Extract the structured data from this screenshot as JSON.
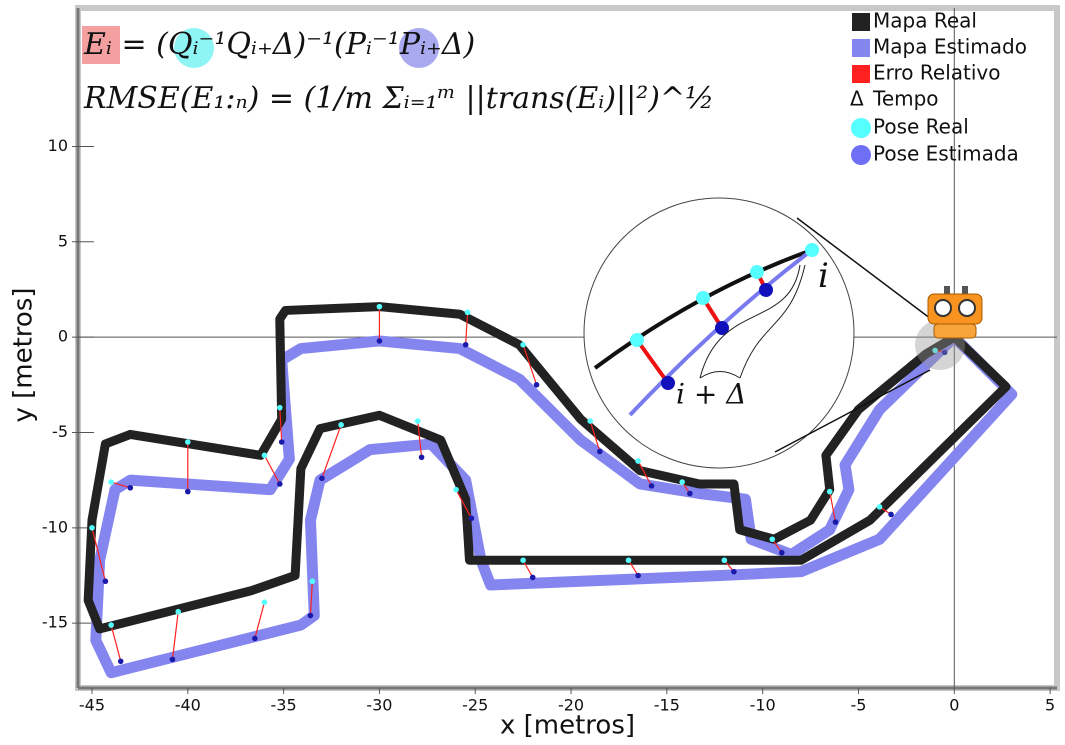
{
  "chart_data": {
    "type": "line",
    "x_label": "x [metros]",
    "y_label": "y [metros]",
    "xlim": [
      -45.73,
      5.36
    ],
    "ylim": [
      -18.4,
      17.26
    ],
    "xticks": [
      -45,
      -40,
      -35,
      -30,
      -25,
      -20,
      -15,
      -10,
      -5,
      0,
      5
    ],
    "yticks": [
      -15,
      -10,
      -5,
      0,
      5,
      10
    ],
    "axis_lines_at_zero": true,
    "annotations": {
      "formula_error": "Eᵢ = (Qᵢ⁻¹Qᵢ₊Δ)⁻¹(Pᵢ⁻¹Pᵢ₊Δ)",
      "formula_rmse": "RMSE(E₁:ₙ) = (1/m Σᵢ₌₁ᵐ ||trans(Eᵢ)||²)^½",
      "inset_i": "i",
      "inset_i_delta": "i + Δ"
    },
    "series": [
      {
        "name": "Mapa Real",
        "color": "#222222",
        "x": [
          0,
          2.7,
          -4.4,
          -8,
          -11.7,
          -25.3,
          -25.5,
          -26.8,
          -30,
          -33.1,
          -34.1,
          -34.4,
          -36.7,
          -44.6,
          -45.2,
          -45,
          -44.3,
          -43,
          -36.2,
          -35.1,
          -35.2,
          -34.9,
          -30,
          -25.8,
          -22.7,
          -19.5,
          -16.4,
          -13.3,
          -11.5,
          -11.2,
          -9.4,
          -7.5,
          -6.5,
          -6.7,
          -5,
          -1.5,
          0
        ],
        "y": [
          0,
          -2.6,
          -9.6,
          -11.7,
          -11.7,
          -11.7,
          -8.5,
          -5.4,
          -4.1,
          -4.8,
          -6.9,
          -12.5,
          -13.3,
          -15.3,
          -13.8,
          -9.6,
          -5.6,
          -5.1,
          -6.2,
          -4.3,
          0.95,
          1.4,
          1.6,
          1.2,
          -0.4,
          -4.3,
          -7,
          -7.7,
          -7.7,
          -10.1,
          -10.6,
          -9.6,
          -8,
          -6.2,
          -3.8,
          -0.9,
          0
        ]
      },
      {
        "name": "Mapa Estimado",
        "color": "#8585f0",
        "x": [
          0,
          3,
          -3.9,
          -8,
          -12.2,
          -24.2,
          -24.7,
          -25.5,
          -27.3,
          -30.5,
          -33.1,
          -33.6,
          -33.4,
          -34.1,
          -44,
          -44.8,
          -44.6,
          -43.8,
          -43,
          -35.7,
          -34.7,
          -35.1,
          -34.1,
          -30,
          -25.8,
          -22.7,
          -19.5,
          -16.4,
          -13.3,
          -10.9,
          -10.6,
          -8.5,
          -6.5,
          -5.5,
          -5.7,
          -3.9,
          0
        ],
        "y": [
          0,
          -3,
          -10.6,
          -12.3,
          -12.5,
          -13,
          -11.7,
          -7.5,
          -5.6,
          -5.9,
          -7.5,
          -9.6,
          -14.6,
          -15.1,
          -17.6,
          -15.9,
          -11.7,
          -8,
          -7.5,
          -8,
          -6.4,
          -1.2,
          -0.6,
          -0.2,
          -0.6,
          -2.2,
          -5.4,
          -7.7,
          -8.2,
          -8.5,
          -10.6,
          -11.4,
          -10.1,
          -8,
          -6.7,
          -3.8,
          0
        ]
      }
    ],
    "error_lines": {
      "name": "Erro Relativo",
      "color": "#ff2020"
    },
    "time_legend": {
      "symbol": "Δ",
      "name": "Tempo"
    },
    "poses": [
      {
        "name": "Pose Real",
        "color": "#55ffff",
        "x": [
          -30,
          -25.4,
          -22.5,
          -19,
          -16.5,
          -14.2,
          -9.5,
          -6.5,
          -1,
          -3.9,
          -12,
          -17,
          -22.5,
          -26,
          -28,
          -32,
          -33.5,
          -36,
          -40.5,
          -44,
          -45,
          -44,
          -40,
          -36,
          -35.2
        ],
        "y": [
          1.6,
          1.3,
          -0.4,
          -4.4,
          -6.5,
          -7.6,
          -10.6,
          -8.1,
          -0.7,
          -8.9,
          -11.7,
          -11.7,
          -11.7,
          -8,
          -4.4,
          -4.6,
          -12.8,
          -13.9,
          -14.4,
          -15.1,
          -10,
          -7.6,
          -5.5,
          -6.2,
          -3.7
        ]
      },
      {
        "name": "Pose Estimada",
        "color": "#6f6ff5",
        "x": [
          -30,
          -25.5,
          -21.8,
          -18.5,
          -15.8,
          -13.8,
          -9,
          -6.2,
          -0.5,
          -3.3,
          -11.5,
          -16.5,
          -22,
          -25.2,
          -27.8,
          -33,
          -33.6,
          -36.5,
          -40.8,
          -43.5,
          -44.3,
          -43,
          -40,
          -35.2,
          -35.1
        ],
        "y": [
          -0.2,
          -0.4,
          -2.5,
          -6,
          -7.8,
          -8.2,
          -11.3,
          -9.7,
          -0.8,
          -9.3,
          -12.3,
          -12.5,
          -12.6,
          -9.5,
          -6.3,
          -7.4,
          -14.6,
          -15.8,
          -16.9,
          -17,
          -12.8,
          -7.9,
          -8.1,
          -7.7,
          -5.5
        ]
      }
    ]
  }
}
